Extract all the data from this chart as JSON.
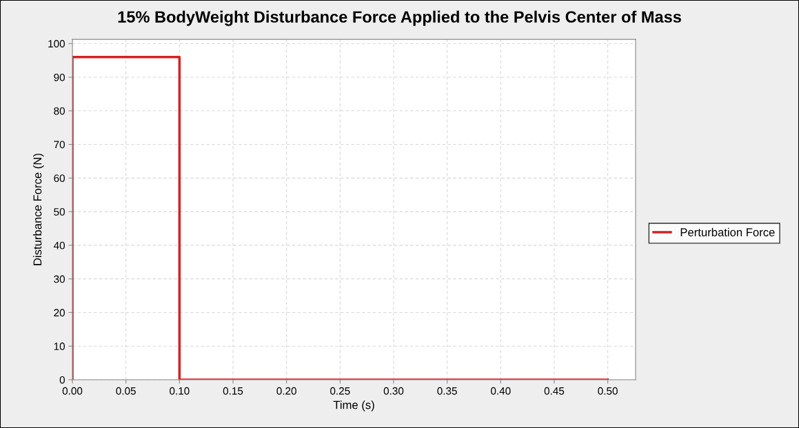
{
  "chart_data": {
    "type": "line",
    "title": "15% BodyWeight Disturbance Force Applied to the Pelvis Center of Mass",
    "xlabel": "Time (s)",
    "ylabel": "Disturbance Force (N)",
    "series": [
      {
        "name": "Perturbation Force",
        "color": "#d62020",
        "x": [
          0,
          0,
          0.1,
          0.1,
          0.5
        ],
        "values": [
          0,
          96,
          96,
          0,
          0
        ]
      }
    ],
    "xlim": [
      0,
      0.526
    ],
    "xticks": [
      {
        "value": 0,
        "label": "0.00"
      },
      {
        "value": 0.05,
        "label": "0.05"
      },
      {
        "value": 0.1,
        "label": "0.10"
      },
      {
        "value": 0.15,
        "label": "0.15"
      },
      {
        "value": 0.2,
        "label": "0.20"
      },
      {
        "value": 0.25,
        "label": "0.25"
      },
      {
        "value": 0.3,
        "label": "0.30"
      },
      {
        "value": 0.35,
        "label": "0.35"
      },
      {
        "value": 0.4,
        "label": "0.40"
      },
      {
        "value": 0.45,
        "label": "0.45"
      },
      {
        "value": 0.5,
        "label": "0.50"
      }
    ],
    "ylim": [
      0,
      101.25
    ],
    "yticks": [
      0,
      10,
      20,
      30,
      40,
      50,
      60,
      70,
      80,
      90,
      100
    ],
    "grid": true,
    "legend": "right",
    "marker": "none",
    "line_style": "solid"
  }
}
